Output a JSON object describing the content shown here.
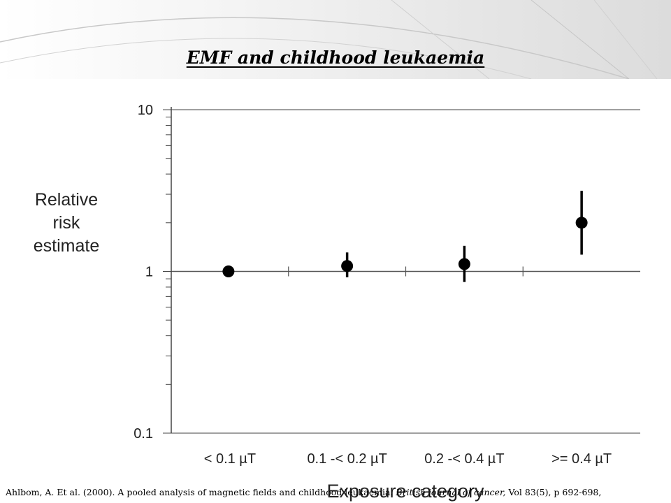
{
  "slide": {
    "title": "EMF and childhood  leukaemia",
    "citation": {
      "before_journal": "Ahlbom, A. Et al. (2000). A pooled analysis of magnetic fields and childhood leukaemia.",
      "journal": "British journal of cancer,",
      "after_journal": "Vol 83(5), p 692-698,"
    }
  },
  "chart_data": {
    "type": "scatter",
    "ylabel_lines": [
      "Relative",
      "risk",
      "estimate"
    ],
    "xlabel": "Exposure category",
    "y_scale": "log",
    "ylim": [
      0.1,
      10
    ],
    "y_ticks": [
      {
        "value": 10,
        "label": "10"
      },
      {
        "value": 1,
        "label": "1"
      },
      {
        "value": 0.1,
        "label": "0.1"
      }
    ],
    "categories": [
      "< 0.1 µT",
      "0.1 -< 0.2 µT",
      "0.2 -< 0.4 µT",
      ">= 0.4 µT"
    ],
    "series": [
      {
        "values": [
          1.0,
          1.08,
          1.11,
          2.0
        ],
        "ci_lower": [
          null,
          0.92,
          0.86,
          1.27
        ],
        "ci_upper": [
          null,
          1.31,
          1.44,
          3.15
        ]
      }
    ],
    "reference_line": 1,
    "grid": "horizontal lines at 0.1, 1 and 10",
    "legend": "none",
    "colors": {
      "marker": "#000000",
      "grid": "#a0a0a0",
      "axis": "#444444",
      "text": "#222222"
    }
  }
}
